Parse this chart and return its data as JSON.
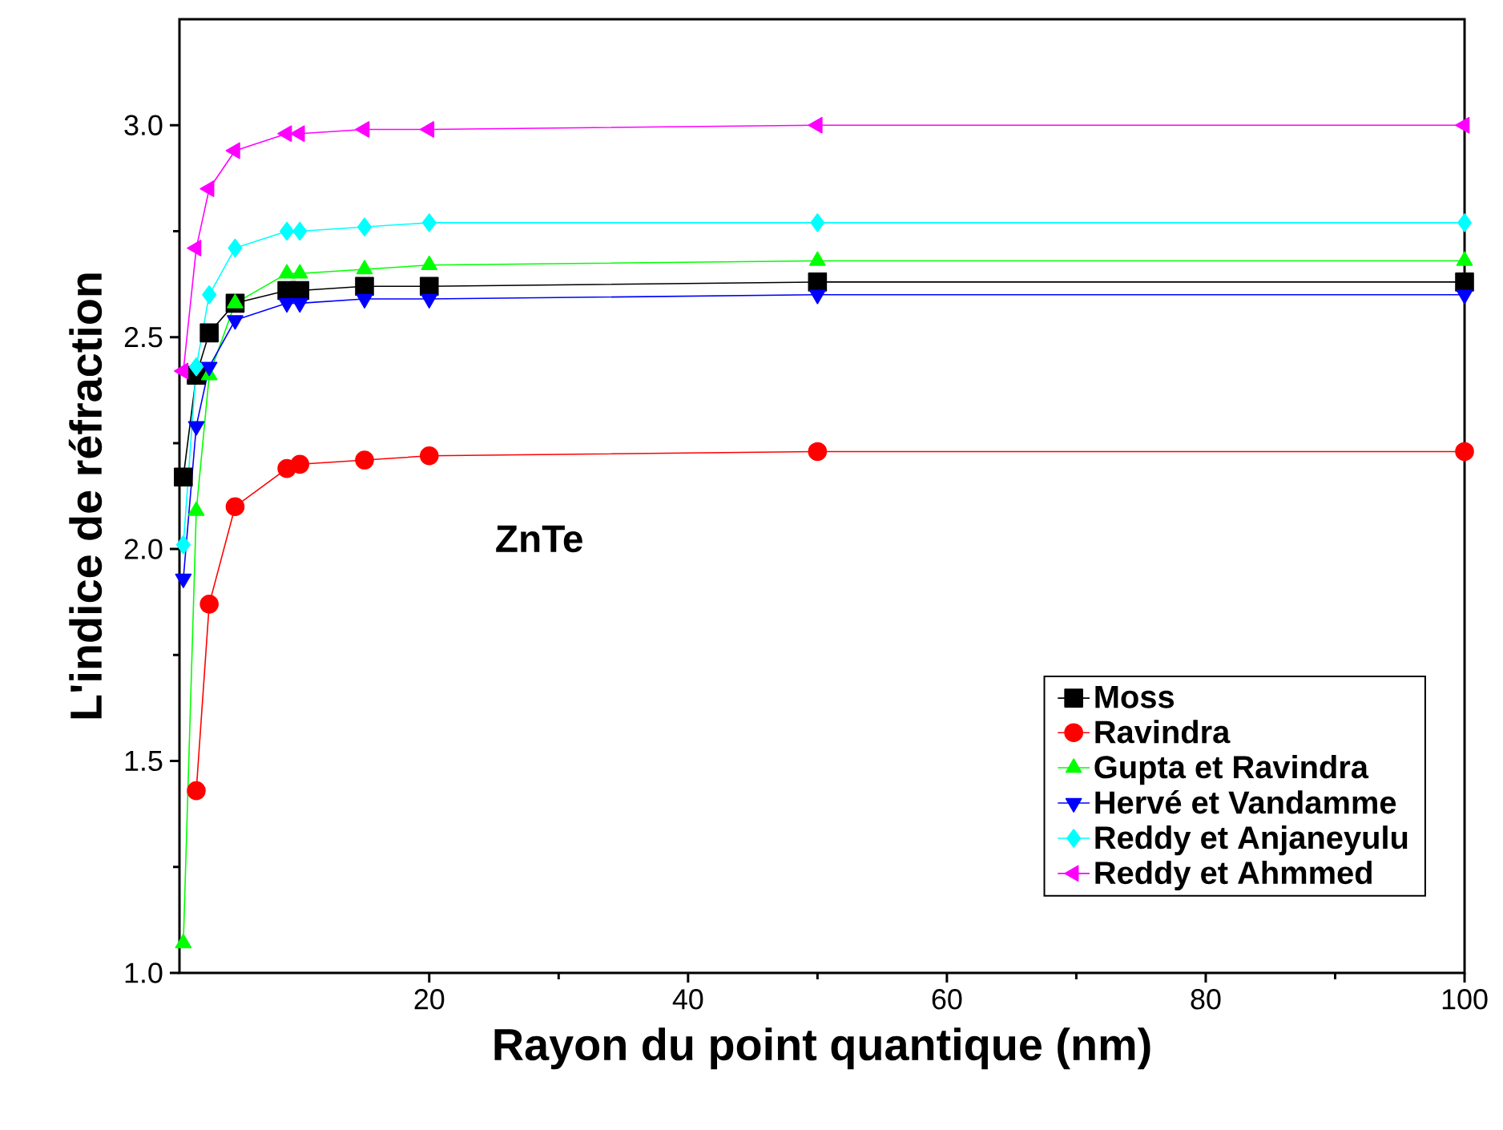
{
  "chart_data": {
    "type": "line",
    "xlabel": "Rayon du point quantique (nm)",
    "ylabel": "L'indice de réfraction",
    "annotations": [
      "ZnTe"
    ],
    "x": [
      1,
      2,
      3,
      5,
      9,
      10,
      15,
      20,
      50,
      100
    ],
    "xlim": [
      0.7,
      100
    ],
    "xticks": [
      20,
      40,
      60,
      80,
      100
    ],
    "ylim": [
      1.0,
      3.25
    ],
    "yticks": [
      {
        "value": 1.0,
        "label": "1.0"
      },
      {
        "value": 1.5,
        "label": "1.5"
      },
      {
        "value": 2.0,
        "label": "2.0"
      },
      {
        "value": 2.5,
        "label": "2.5"
      },
      {
        "value": 3.0,
        "label": "3.0"
      }
    ],
    "legend": "bottom right",
    "grid": false,
    "series": [
      {
        "name": "Moss",
        "color": "#000000",
        "marker": "square",
        "values": [
          2.17,
          2.41,
          2.51,
          2.58,
          2.61,
          2.61,
          2.62,
          2.62,
          2.63,
          2.63
        ]
      },
      {
        "name": "Ravindra",
        "color": "#ff0000",
        "marker": "circle",
        "values": [
          null,
          1.43,
          1.87,
          2.1,
          2.19,
          2.2,
          2.21,
          2.22,
          2.23,
          2.23
        ]
      },
      {
        "name": "Gupta et Ravindra",
        "color": "#00ff00",
        "marker": "triangle",
        "values": [
          1.07,
          2.09,
          2.41,
          2.58,
          2.65,
          2.65,
          2.66,
          2.67,
          2.68,
          2.68
        ]
      },
      {
        "name": "Hervé et Vandamme",
        "color": "#0000ff",
        "marker": "triangle-down",
        "values": [
          1.93,
          2.29,
          2.43,
          2.54,
          2.58,
          2.58,
          2.59,
          2.59,
          2.6,
          2.6
        ]
      },
      {
        "name": "Reddy et Anjaneyulu",
        "color": "#00ffff",
        "marker": "diamond",
        "values": [
          2.01,
          2.43,
          2.6,
          2.71,
          2.75,
          2.75,
          2.76,
          2.77,
          2.77,
          2.77
        ]
      },
      {
        "name": "Reddy et Ahmmed",
        "color": "#ff00ff",
        "marker": "triangle-left",
        "values": [
          2.42,
          2.71,
          2.85,
          2.94,
          2.98,
          2.98,
          2.99,
          2.99,
          3.0,
          3.0
        ]
      }
    ]
  }
}
